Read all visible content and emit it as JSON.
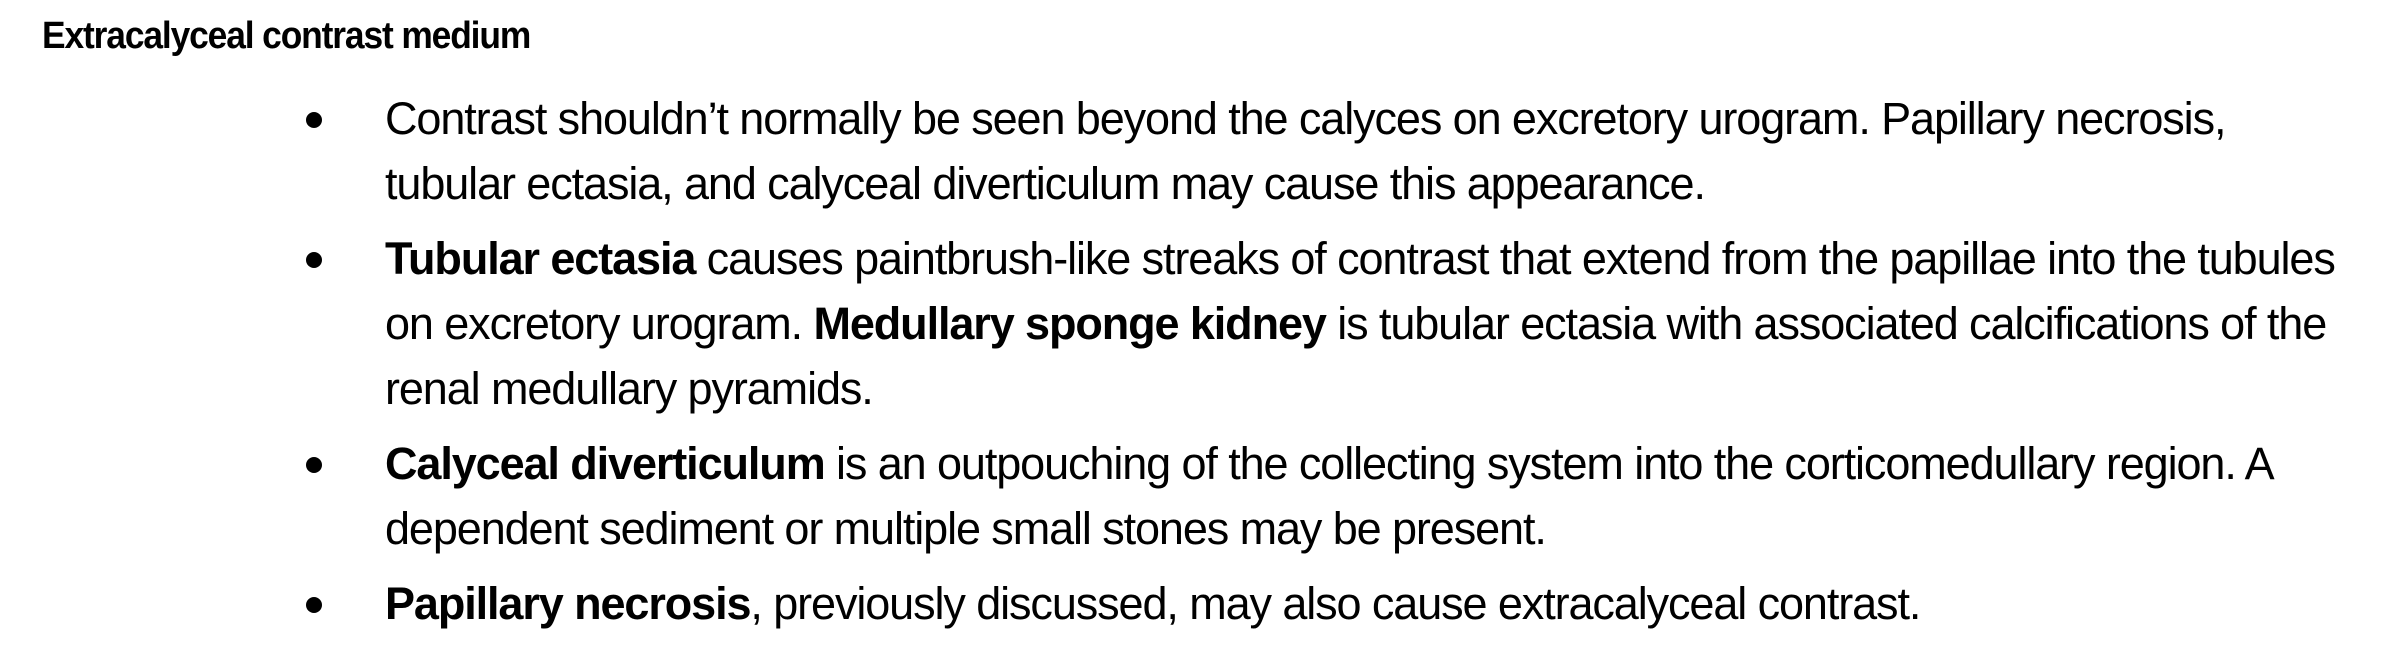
{
  "heading": "Extracalyceal contrast medium",
  "bullets": [
    {
      "bold": "",
      "text": "Contrast shouldn’t normally be seen beyond the calyces on excretory urogram. Papillary necrosis, tubular ectasia, and calyceal diverticulum may cause this appearance."
    },
    {
      "bold": "Tubular ectasia",
      "text": " causes paintbrush-like streaks of contrast that extend from the papillae into the tubules on excretory urogram. ",
      "bold2": "Medullary sponge kidney",
      "text2": " is tubular ectasia with associated calcifications of the renal medullary pyramids."
    },
    {
      "bold": "Calyceal diverticulum",
      "text": " is an outpouching of the collecting system into the corticomedullary region. A dependent sediment or multiple small stones may be present."
    },
    {
      "bold": "Papillary necrosis",
      "text": ", previously discussed, may also cause extracalyceal contrast."
    }
  ]
}
